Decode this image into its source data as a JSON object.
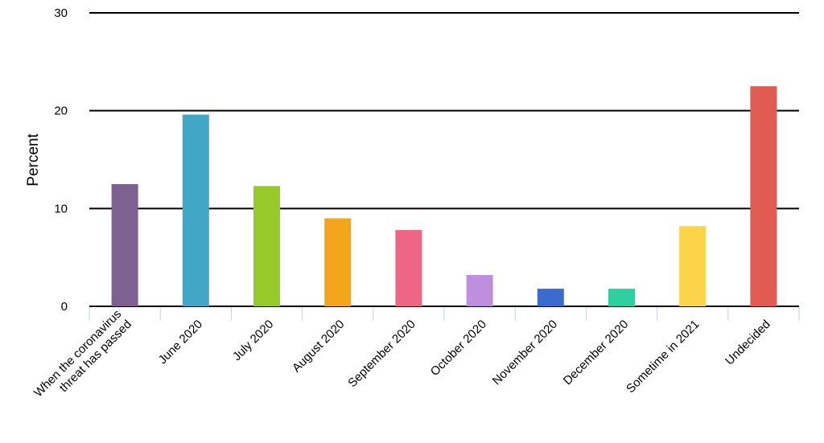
{
  "chart_data": {
    "type": "bar",
    "ylabel": "Percent",
    "ylim": [
      0,
      30
    ],
    "yticks": [
      0,
      10,
      20,
      30
    ],
    "grid": true,
    "categories": [
      "When the coronavirus threat has passed",
      "June 2020",
      "July 2020",
      "August 2020",
      "September 2020",
      "October 2020",
      "November 2020",
      "December 2020",
      "Sometime in 2021",
      "Undecided"
    ],
    "values": [
      12.5,
      19.6,
      12.3,
      9.0,
      7.8,
      3.2,
      1.8,
      1.8,
      8.2,
      22.5
    ],
    "colors": [
      "#7d6190",
      "#42a6c6",
      "#97c92a",
      "#f3a51c",
      "#ef6685",
      "#bd8fdc",
      "#3c6bd0",
      "#2fcf9f",
      "#fbd44a",
      "#e05c52"
    ]
  }
}
